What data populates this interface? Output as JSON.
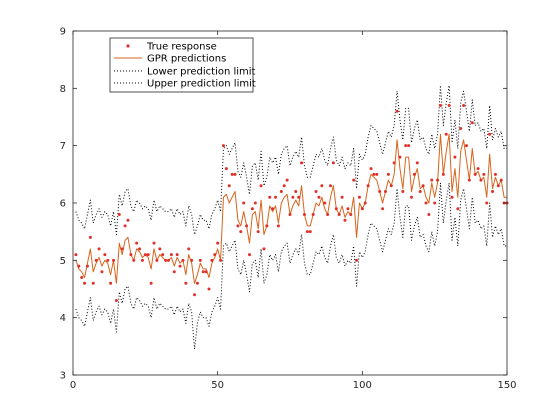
{
  "chart_data": {
    "type": "line",
    "title": "",
    "xlabel": "",
    "ylabel": "",
    "xlim": [
      0,
      150
    ],
    "ylim": [
      3,
      9
    ],
    "xticks": [
      0,
      50,
      100,
      150
    ],
    "yticks": [
      3,
      4,
      5,
      6,
      7,
      8,
      9
    ],
    "grid": false,
    "legend_position": "top-left",
    "colors": {
      "true_response": "#e0302a",
      "gpr_predictions": "#d9641c",
      "limits": "#000000",
      "axes": "#262626"
    },
    "series": [
      {
        "name": "True response",
        "style": "points",
        "x": [
          1,
          2,
          3,
          4,
          5,
          6,
          7,
          8,
          9,
          10,
          11,
          12,
          13,
          14,
          15,
          16,
          17,
          18,
          19,
          20,
          21,
          22,
          23,
          24,
          25,
          26,
          27,
          28,
          29,
          30,
          31,
          32,
          33,
          34,
          35,
          36,
          37,
          38,
          39,
          40,
          41,
          42,
          43,
          44,
          45,
          46,
          47,
          48,
          49,
          50,
          51,
          52,
          53,
          54,
          55,
          56,
          57,
          58,
          59,
          60,
          61,
          62,
          63,
          64,
          65,
          66,
          67,
          68,
          69,
          70,
          71,
          72,
          73,
          74,
          75,
          76,
          77,
          78,
          79,
          80,
          81,
          82,
          83,
          84,
          85,
          86,
          87,
          88,
          89,
          90,
          91,
          92,
          93,
          94,
          95,
          96,
          97,
          98,
          99,
          100,
          101,
          102,
          103,
          104,
          105,
          106,
          107,
          108,
          109,
          110,
          111,
          112,
          113,
          114,
          115,
          116,
          117,
          118,
          119,
          120,
          121,
          122,
          123,
          124,
          125,
          126,
          127,
          128,
          129,
          130,
          131,
          132,
          133,
          134,
          135,
          136,
          137,
          138,
          139,
          140,
          141,
          142,
          143,
          144,
          145,
          146,
          147,
          148,
          149,
          150
        ],
        "y": [
          5.1,
          4.9,
          4.7,
          4.6,
          4.9,
          5.4,
          4.6,
          5.0,
          5.2,
          4.8,
          5.1,
          5.0,
          4.6,
          5.0,
          4.3,
          5.8,
          5.2,
          5.6,
          5.7,
          5.1,
          5.0,
          5.3,
          5.2,
          5.0,
          5.1,
          5.1,
          4.6,
          5.3,
          5.0,
          5.2,
          5.1,
          5.0,
          5.0,
          5.1,
          4.8,
          5.1,
          4.9,
          5.0,
          4.6,
          5.2,
          5.0,
          4.4,
          4.6,
          5.0,
          4.8,
          4.8,
          4.5,
          5.0,
          5.1,
          5.3,
          5.0,
          7.0,
          6.6,
          6.3,
          6.5,
          6.5,
          5.6,
          5.5,
          6.0,
          5.6,
          5.1,
          5.9,
          6.0,
          5.5,
          6.3,
          5.2,
          5.6,
          6.1,
          5.9,
          6.1,
          5.6,
          6.2,
          6.3,
          6.4,
          5.8,
          6.1,
          6.2,
          6.1,
          6.7,
          5.8,
          5.5,
          5.5,
          5.8,
          6.2,
          6.1,
          6.3,
          6.0,
          5.8,
          6.3,
          6.7,
          5.9,
          5.8,
          6.1,
          5.7,
          5.9,
          5.8,
          6.4,
          5.0,
          6.1,
          5.9,
          6.0,
          6.3,
          6.6,
          6.5,
          6.5,
          6.2,
          5.9,
          6.2,
          6.5,
          6.3,
          6.7,
          7.6,
          6.8,
          6.2,
          7.0,
          7.0,
          6.1,
          6.5,
          6.7,
          6.2,
          6.3,
          6.0,
          5.8,
          6.4,
          6.0,
          6.4,
          7.7,
          6.5,
          7.2,
          7.7,
          6.1,
          6.8,
          5.9,
          7.3,
          7.7,
          7.0,
          6.4,
          7.4,
          6.5,
          6.6,
          6.4,
          6.5,
          6.0,
          7.2,
          6.2,
          6.5,
          6.3,
          6.4,
          6.0,
          6.0
        ],
        "marker_count": 150
      },
      {
        "name": "GPR predictions",
        "style": "line",
        "x": [
          1,
          2,
          3,
          4,
          5,
          6,
          7,
          8,
          9,
          10,
          11,
          12,
          13,
          14,
          15,
          16,
          17,
          18,
          19,
          20,
          21,
          22,
          23,
          24,
          25,
          26,
          27,
          28,
          29,
          30,
          31,
          32,
          33,
          34,
          35,
          36,
          37,
          38,
          39,
          40,
          41,
          42,
          43,
          44,
          45,
          46,
          47,
          48,
          49,
          50,
          51,
          52,
          53,
          54,
          55,
          56,
          57,
          58,
          59,
          60,
          61,
          62,
          63,
          64,
          65,
          66,
          67,
          68,
          69,
          70,
          71,
          72,
          73,
          74,
          75,
          76,
          77,
          78,
          79,
          80,
          81,
          82,
          83,
          84,
          85,
          86,
          87,
          88,
          89,
          90,
          91,
          92,
          93,
          94,
          95,
          96,
          97,
          98,
          99,
          100,
          101,
          102,
          103,
          104,
          105,
          106,
          107,
          108,
          109,
          110,
          111,
          112,
          113,
          114,
          115,
          116,
          117,
          118,
          119,
          120,
          121,
          122,
          123,
          124,
          125,
          126,
          127,
          128,
          129,
          130,
          131,
          132,
          133,
          134,
          135,
          136,
          137,
          138,
          139,
          140,
          141,
          142,
          143,
          144,
          145,
          146,
          147,
          148,
          149,
          150
        ],
        "y": [
          5.0,
          4.85,
          4.8,
          4.7,
          4.95,
          5.2,
          4.8,
          4.95,
          5.05,
          4.9,
          5.0,
          4.95,
          4.75,
          5.0,
          4.6,
          5.3,
          5.1,
          5.35,
          5.4,
          5.1,
          5.0,
          5.2,
          5.15,
          5.05,
          5.1,
          5.05,
          4.85,
          5.2,
          5.0,
          5.1,
          5.05,
          5.0,
          5.0,
          5.05,
          4.9,
          5.05,
          4.95,
          5.0,
          4.75,
          5.1,
          4.95,
          4.6,
          4.75,
          4.95,
          4.85,
          4.85,
          4.7,
          4.95,
          5.05,
          5.2,
          5.0,
          6.1,
          6.15,
          6.0,
          6.1,
          6.2,
          5.7,
          5.6,
          5.85,
          5.6,
          5.3,
          5.8,
          5.85,
          5.55,
          6.05,
          5.45,
          5.6,
          5.95,
          5.85,
          5.95,
          5.65,
          6.0,
          6.1,
          6.15,
          5.8,
          5.95,
          6.05,
          5.95,
          6.3,
          5.8,
          5.6,
          5.6,
          5.8,
          6.0,
          5.95,
          6.1,
          5.9,
          5.8,
          6.1,
          6.3,
          5.9,
          5.8,
          5.95,
          5.75,
          5.85,
          5.8,
          6.1,
          5.4,
          6.0,
          5.9,
          6.0,
          6.3,
          6.5,
          6.45,
          6.4,
          6.2,
          6.0,
          6.2,
          6.4,
          6.3,
          6.5,
          7.1,
          6.6,
          6.25,
          6.8,
          6.8,
          6.2,
          6.45,
          6.6,
          6.25,
          6.3,
          6.1,
          6.0,
          6.35,
          6.1,
          6.35,
          7.2,
          6.5,
          6.9,
          7.2,
          6.2,
          6.6,
          6.1,
          6.9,
          7.1,
          6.75,
          6.4,
          6.95,
          6.5,
          6.55,
          6.4,
          6.45,
          6.1,
          6.85,
          6.25,
          6.45,
          6.3,
          6.4,
          6.1,
          6.1
        ]
      },
      {
        "name": "Lower prediction limit",
        "style": "dotted",
        "x": [
          1,
          2,
          3,
          4,
          5,
          6,
          7,
          8,
          9,
          10,
          11,
          12,
          13,
          14,
          15,
          16,
          17,
          18,
          19,
          20,
          21,
          22,
          23,
          24,
          25,
          26,
          27,
          28,
          29,
          30,
          31,
          32,
          33,
          34,
          35,
          36,
          37,
          38,
          39,
          40,
          41,
          42,
          43,
          44,
          45,
          46,
          47,
          48,
          49,
          50,
          51,
          52,
          53,
          54,
          55,
          56,
          57,
          58,
          59,
          60,
          61,
          62,
          63,
          64,
          65,
          66,
          67,
          68,
          69,
          70,
          71,
          72,
          73,
          74,
          75,
          76,
          77,
          78,
          79,
          80,
          81,
          82,
          83,
          84,
          85,
          86,
          87,
          88,
          89,
          90,
          91,
          92,
          93,
          94,
          95,
          96,
          97,
          98,
          99,
          100,
          101,
          102,
          103,
          104,
          105,
          106,
          107,
          108,
          109,
          110,
          111,
          112,
          113,
          114,
          115,
          116,
          117,
          118,
          119,
          120,
          121,
          122,
          123,
          124,
          125,
          126,
          127,
          128,
          129,
          130,
          131,
          132,
          133,
          134,
          135,
          136,
          137,
          138,
          139,
          140,
          141,
          142,
          143,
          144,
          145,
          146,
          147,
          148,
          149,
          150
        ],
        "y": [
          4.15,
          4.0,
          3.95,
          3.85,
          4.1,
          4.35,
          3.95,
          4.1,
          4.2,
          4.05,
          4.15,
          4.1,
          3.9,
          4.15,
          3.75,
          4.45,
          4.25,
          4.5,
          4.55,
          4.25,
          4.15,
          4.35,
          4.3,
          4.2,
          4.25,
          4.2,
          4.0,
          4.35,
          4.15,
          4.25,
          4.2,
          4.15,
          4.15,
          4.2,
          4.05,
          4.2,
          4.1,
          4.15,
          3.9,
          4.25,
          4.1,
          3.45,
          3.9,
          4.1,
          4.0,
          4.0,
          3.85,
          4.1,
          4.2,
          4.35,
          4.15,
          5.25,
          5.3,
          5.15,
          5.25,
          5.35,
          4.85,
          4.75,
          5.0,
          4.75,
          4.45,
          4.95,
          5.0,
          4.7,
          5.2,
          4.6,
          4.75,
          5.1,
          5.0,
          5.1,
          4.8,
          5.15,
          5.25,
          5.3,
          4.95,
          5.1,
          5.2,
          5.1,
          5.45,
          4.95,
          4.75,
          4.75,
          4.95,
          5.15,
          5.1,
          5.25,
          5.05,
          4.95,
          5.25,
          5.45,
          5.05,
          4.95,
          5.1,
          4.9,
          5.0,
          4.95,
          5.25,
          4.55,
          5.15,
          5.05,
          5.15,
          5.45,
          5.65,
          5.6,
          5.55,
          5.35,
          5.15,
          5.35,
          5.55,
          5.45,
          5.65,
          6.25,
          5.75,
          5.4,
          5.95,
          5.95,
          5.35,
          5.6,
          5.75,
          5.4,
          5.45,
          5.25,
          5.15,
          5.5,
          5.25,
          5.5,
          6.35,
          5.65,
          6.05,
          6.35,
          5.35,
          5.75,
          5.25,
          6.05,
          6.25,
          5.9,
          5.55,
          6.1,
          5.65,
          5.7,
          5.55,
          5.6,
          5.25,
          6.0,
          5.4,
          5.6,
          5.45,
          5.55,
          5.25,
          5.25
        ]
      },
      {
        "name": "Upper prediction limit",
        "style": "dotted",
        "x": [
          1,
          2,
          3,
          4,
          5,
          6,
          7,
          8,
          9,
          10,
          11,
          12,
          13,
          14,
          15,
          16,
          17,
          18,
          19,
          20,
          21,
          22,
          23,
          24,
          25,
          26,
          27,
          28,
          29,
          30,
          31,
          32,
          33,
          34,
          35,
          36,
          37,
          38,
          39,
          40,
          41,
          42,
          43,
          44,
          45,
          46,
          47,
          48,
          49,
          50,
          51,
          52,
          53,
          54,
          55,
          56,
          57,
          58,
          59,
          60,
          61,
          62,
          63,
          64,
          65,
          66,
          67,
          68,
          69,
          70,
          71,
          72,
          73,
          74,
          75,
          76,
          77,
          78,
          79,
          80,
          81,
          82,
          83,
          84,
          85,
          86,
          87,
          88,
          89,
          90,
          91,
          92,
          93,
          94,
          95,
          96,
          97,
          98,
          99,
          100,
          101,
          102,
          103,
          104,
          105,
          106,
          107,
          108,
          109,
          110,
          111,
          112,
          113,
          114,
          115,
          116,
          117,
          118,
          119,
          120,
          121,
          122,
          123,
          124,
          125,
          126,
          127,
          128,
          129,
          130,
          131,
          132,
          133,
          134,
          135,
          136,
          137,
          138,
          139,
          140,
          141,
          142,
          143,
          144,
          145,
          146,
          147,
          148,
          149,
          150
        ],
        "y": [
          5.85,
          5.7,
          5.65,
          5.55,
          5.8,
          6.05,
          5.65,
          5.8,
          5.9,
          5.75,
          5.85,
          5.8,
          5.6,
          5.85,
          5.45,
          6.15,
          5.95,
          6.2,
          6.25,
          5.95,
          5.85,
          6.05,
          6.0,
          5.9,
          5.95,
          5.9,
          5.7,
          6.05,
          5.85,
          5.95,
          5.9,
          5.85,
          5.85,
          5.9,
          5.75,
          5.9,
          5.8,
          5.85,
          5.6,
          5.95,
          5.8,
          5.45,
          5.6,
          5.8,
          5.7,
          5.7,
          5.55,
          5.8,
          5.9,
          6.05,
          5.85,
          6.95,
          7.0,
          6.85,
          6.95,
          7.05,
          6.55,
          6.45,
          6.7,
          6.45,
          6.15,
          6.65,
          6.7,
          6.4,
          6.9,
          6.3,
          6.45,
          6.8,
          6.7,
          6.8,
          6.5,
          6.85,
          6.95,
          7.0,
          6.65,
          6.8,
          6.9,
          6.8,
          7.15,
          6.65,
          6.45,
          6.45,
          6.65,
          6.85,
          6.8,
          6.95,
          6.75,
          6.65,
          6.95,
          7.15,
          6.75,
          6.65,
          6.8,
          6.6,
          6.7,
          6.65,
          6.95,
          6.25,
          6.85,
          6.75,
          6.85,
          7.15,
          7.35,
          7.3,
          7.25,
          7.05,
          6.85,
          7.05,
          7.25,
          7.15,
          7.35,
          7.95,
          7.45,
          7.1,
          7.65,
          7.65,
          7.05,
          7.3,
          7.45,
          7.1,
          7.15,
          6.95,
          6.85,
          7.2,
          6.95,
          7.2,
          8.05,
          7.35,
          7.75,
          8.05,
          7.05,
          7.45,
          6.95,
          7.75,
          7.95,
          7.6,
          7.25,
          7.8,
          7.35,
          7.4,
          7.25,
          7.3,
          6.95,
          7.7,
          7.1,
          7.3,
          7.15,
          7.25,
          6.95,
          6.95
        ]
      }
    ]
  }
}
